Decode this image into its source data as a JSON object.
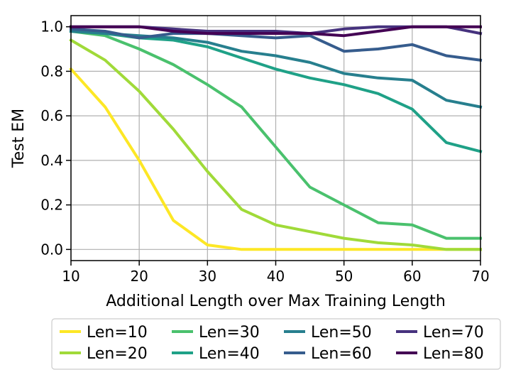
{
  "chart_data": {
    "type": "line",
    "xlabel": "Additional Length over Max Training Length",
    "ylabel": "Test EM",
    "xlim": [
      10,
      70
    ],
    "ylim": [
      -0.05,
      1.05
    ],
    "xticks": [
      10,
      20,
      30,
      40,
      50,
      60,
      70
    ],
    "yticks": [
      0.0,
      0.2,
      0.4,
      0.6,
      0.8,
      1.0
    ],
    "grid": true,
    "legend_position": "bottom",
    "x": [
      10,
      15,
      20,
      25,
      30,
      35,
      40,
      45,
      50,
      55,
      60,
      65,
      70
    ],
    "series": [
      {
        "name": "Len=10",
        "color": "#fde725",
        "values": [
          0.81,
          0.64,
          0.4,
          0.13,
          0.02,
          0.0,
          0.0,
          0.0,
          0.0,
          0.0,
          0.0,
          0.0,
          0.0
        ]
      },
      {
        "name": "Len=20",
        "color": "#a0da39",
        "values": [
          0.94,
          0.85,
          0.71,
          0.54,
          0.35,
          0.18,
          0.11,
          0.08,
          0.05,
          0.03,
          0.02,
          0.0,
          0.0
        ]
      },
      {
        "name": "Len=30",
        "color": "#4ac16d",
        "values": [
          0.98,
          0.96,
          0.9,
          0.83,
          0.74,
          0.64,
          0.46,
          0.28,
          0.2,
          0.12,
          0.11,
          0.05,
          0.05
        ]
      },
      {
        "name": "Len=40",
        "color": "#1fa187",
        "values": [
          0.98,
          0.97,
          0.95,
          0.94,
          0.91,
          0.86,
          0.81,
          0.77,
          0.74,
          0.7,
          0.63,
          0.48,
          0.44
        ]
      },
      {
        "name": "Len=50",
        "color": "#277f8e",
        "values": [
          0.98,
          0.97,
          0.96,
          0.95,
          0.93,
          0.89,
          0.87,
          0.84,
          0.79,
          0.77,
          0.76,
          0.67,
          0.64
        ]
      },
      {
        "name": "Len=60",
        "color": "#365c8d",
        "values": [
          0.99,
          0.98,
          0.95,
          0.97,
          0.97,
          0.96,
          0.95,
          0.96,
          0.89,
          0.9,
          0.92,
          0.87,
          0.85
        ]
      },
      {
        "name": "Len=70",
        "color": "#46327e",
        "values": [
          1.0,
          1.0,
          1.0,
          0.99,
          0.98,
          0.98,
          0.98,
          0.97,
          0.99,
          1.0,
          1.0,
          1.0,
          0.97
        ]
      },
      {
        "name": "Len=80",
        "color": "#440154",
        "values": [
          1.0,
          1.0,
          1.0,
          0.98,
          0.97,
          0.97,
          0.97,
          0.97,
          0.96,
          0.98,
          1.0,
          1.0,
          1.0
        ]
      }
    ]
  }
}
